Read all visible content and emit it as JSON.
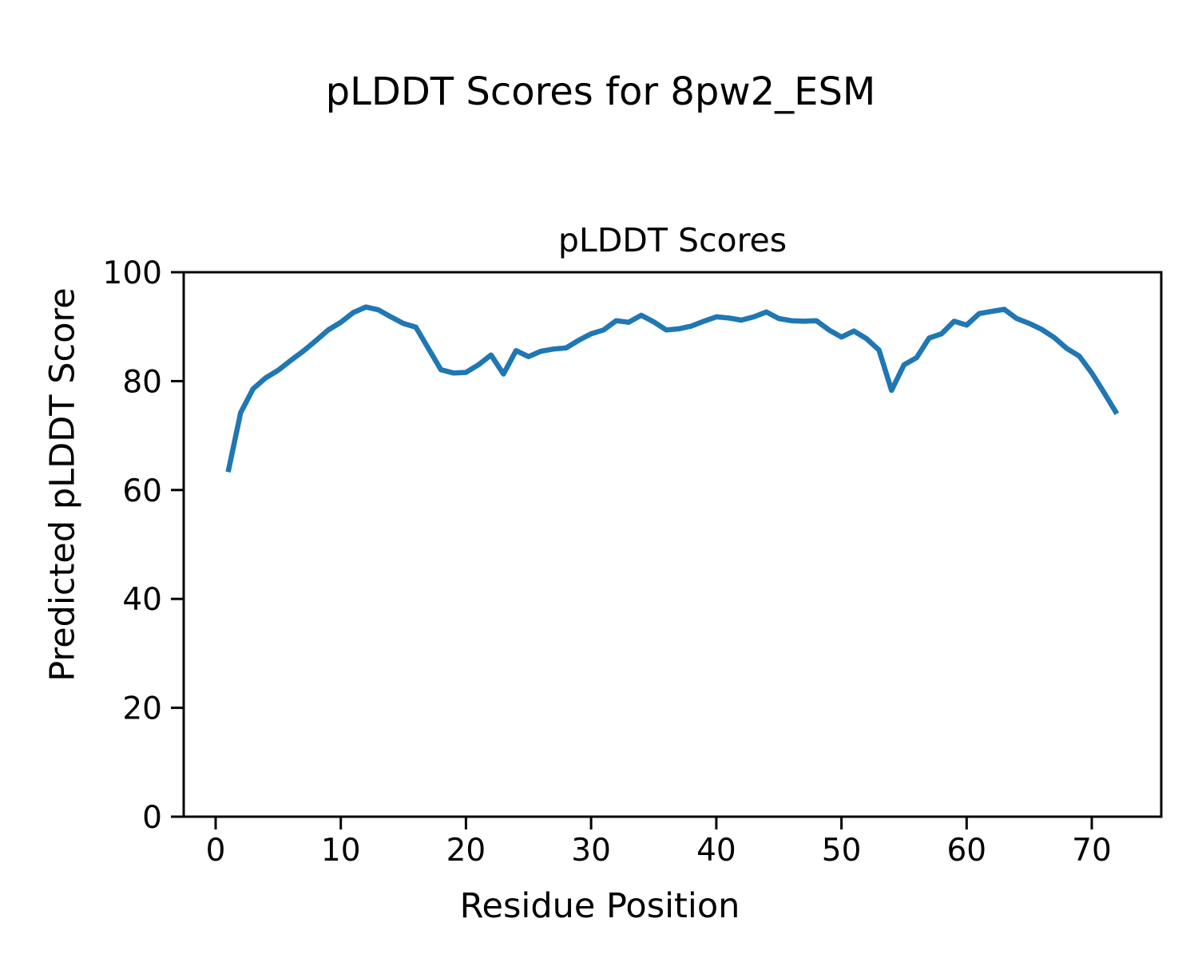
{
  "figure": {
    "suptitle": "pLDDT Scores for 8pw2_ESM",
    "axes_title": "pLDDT Scores",
    "xlabel": "Residue Position",
    "ylabel": "Predicted pLDDT Score",
    "background_color": "#ffffff",
    "text_color": "#000000"
  },
  "chart_data": {
    "type": "line",
    "title": "pLDDT Scores",
    "xlabel": "Residue Position",
    "ylabel": "Predicted pLDDT Score",
    "line_color": "#1f77b4",
    "axis_color": "#000000",
    "grid": false,
    "legend": null,
    "xlim": [
      -2.55,
      75.55
    ],
    "ylim": [
      0,
      100
    ],
    "xticks": [
      0,
      10,
      20,
      30,
      40,
      50,
      60,
      70
    ],
    "yticks": [
      0,
      20,
      40,
      60,
      80,
      100
    ],
    "x": [
      1,
      2,
      3,
      4,
      5,
      6,
      7,
      8,
      9,
      10,
      11,
      12,
      13,
      14,
      15,
      16,
      17,
      18,
      19,
      20,
      21,
      22,
      23,
      24,
      25,
      26,
      27,
      28,
      29,
      30,
      31,
      32,
      33,
      34,
      35,
      36,
      37,
      38,
      39,
      40,
      41,
      42,
      43,
      44,
      45,
      46,
      47,
      48,
      49,
      50,
      51,
      52,
      53,
      54,
      55,
      56,
      57,
      58,
      59,
      60,
      61,
      62,
      63,
      64,
      65,
      66,
      67,
      68,
      69,
      70,
      71,
      72
    ],
    "y": [
      63.3,
      74.2,
      78.6,
      80.6,
      82.0,
      83.8,
      85.5,
      87.4,
      89.4,
      90.8,
      92.6,
      93.6,
      93.1,
      91.8,
      90.6,
      89.9,
      86.0,
      82.1,
      81.5,
      81.6,
      83.0,
      84.8,
      81.3,
      85.6,
      84.5,
      85.5,
      85.9,
      86.1,
      87.5,
      88.7,
      89.4,
      91.1,
      90.8,
      92.1,
      90.9,
      89.4,
      89.6,
      90.1,
      91.0,
      91.8,
      91.6,
      91.2,
      91.8,
      92.7,
      91.5,
      91.1,
      91.0,
      91.1,
      89.4,
      88.1,
      89.2,
      87.8,
      85.7,
      78.3,
      83.0,
      84.3,
      87.9,
      88.7,
      91.0,
      90.3,
      92.4,
      92.8,
      93.2,
      91.5,
      90.6,
      89.5,
      88.0,
      86.0,
      84.6,
      81.5,
      77.8,
      74.0
    ]
  }
}
